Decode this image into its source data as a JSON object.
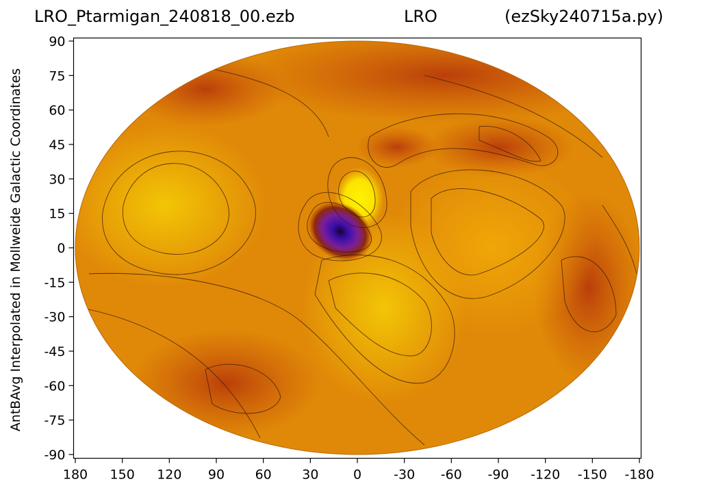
{
  "header": {
    "left": "LRO_Ptarmigan_240818_00.ezb",
    "center": "LRO",
    "right": "(ezSky240715a.py)"
  },
  "chart_data": {
    "type": "heatmap",
    "projection": "mollweide",
    "ylabel": "AntBAvg Interpolated in Mollweide Galactic Coordinates",
    "xticks": [
      180,
      150,
      120,
      90,
      60,
      30,
      0,
      -30,
      -60,
      -90,
      -120,
      -150,
      -180
    ],
    "yticks": [
      90,
      75,
      60,
      45,
      30,
      15,
      0,
      -15,
      -30,
      -45,
      -60,
      -75,
      -90
    ],
    "xlim": [
      180,
      -180
    ],
    "ylim": [
      -90,
      90
    ],
    "colormap": [
      "#2a0a6e",
      "#6b1ab0",
      "#8c2a0c",
      "#b83b0a",
      "#d4620a",
      "#e38608",
      "#f0a807",
      "#f5cc05",
      "#fff200"
    ],
    "features": [
      {
        "name": "minimum",
        "lon": 13,
        "lat": 6
      },
      {
        "name": "maximum",
        "lon": 1,
        "lat": 22
      },
      {
        "name": "maximum",
        "lon": -10,
        "lat": -25
      }
    ]
  }
}
